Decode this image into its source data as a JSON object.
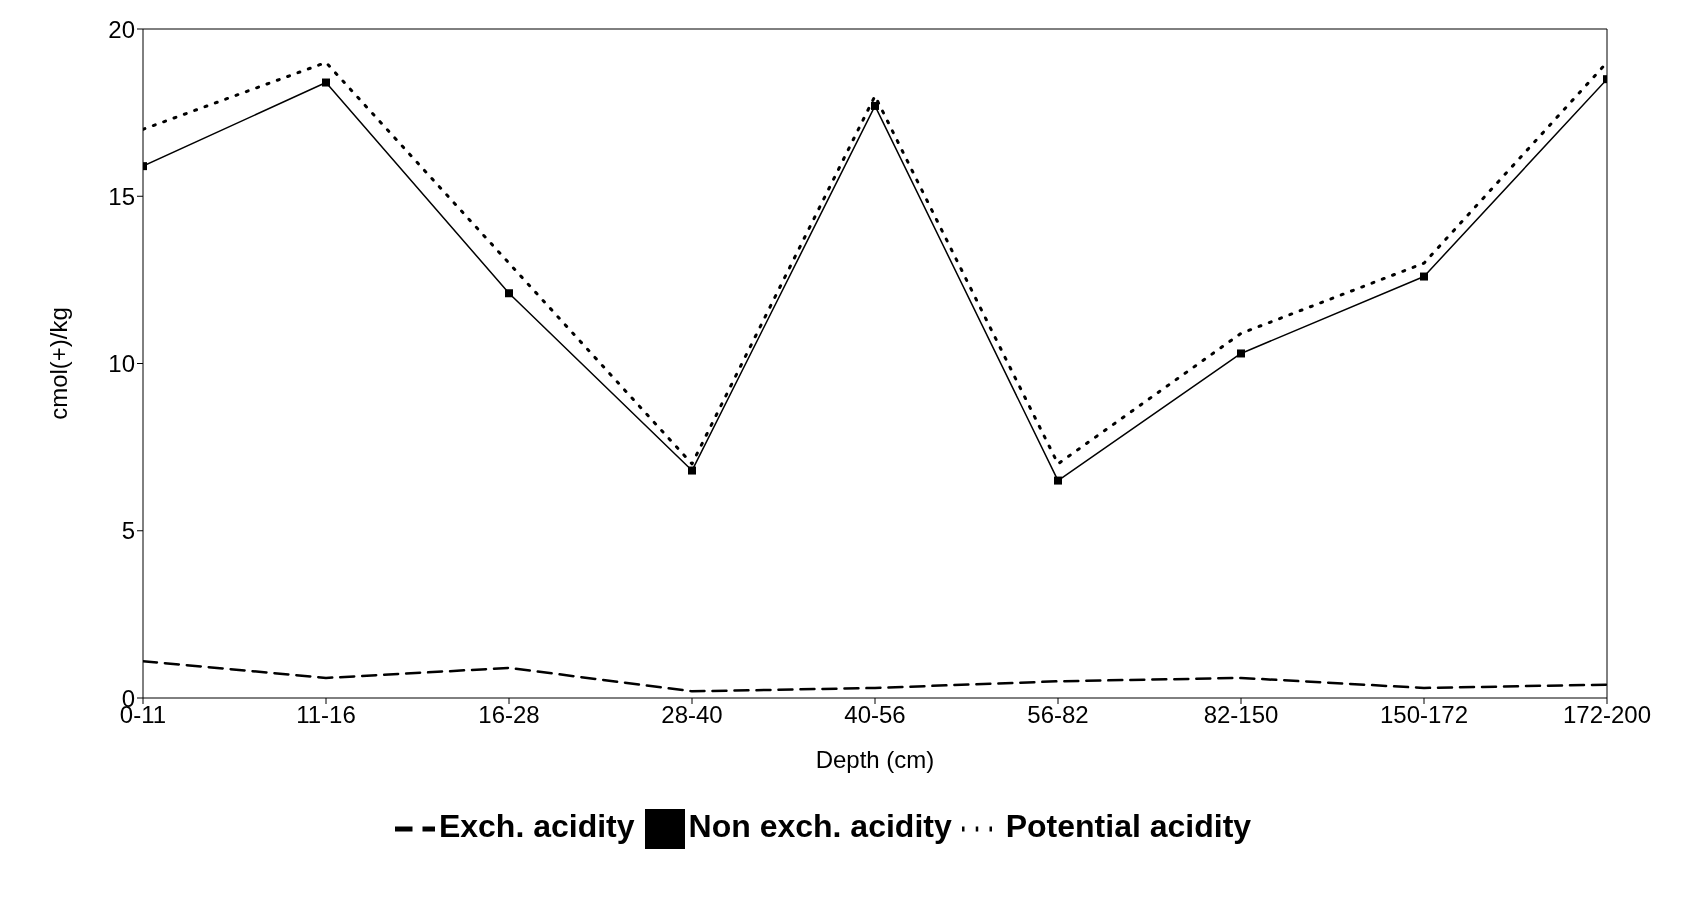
{
  "chart_data": {
    "type": "line",
    "xlabel": "Depth (cm)",
    "ylabel": "cmol(+)/kg",
    "categories": [
      "0-11",
      "11-16",
      "16-28",
      "28-40",
      "40-56",
      "56-82",
      "82-150",
      "150-172",
      "172-200"
    ],
    "series": [
      {
        "name": "Exch. acidity",
        "color": "#000000",
        "line_style": "dashed",
        "marker": "none",
        "values": [
          1.1,
          0.6,
          0.9,
          0.2,
          0.3,
          0.5,
          0.6,
          0.3,
          0.4
        ]
      },
      {
        "name": "Non exch. acidity",
        "color": "#000000",
        "line_style": "solid",
        "marker": "square",
        "values": [
          15.9,
          18.4,
          12.1,
          6.8,
          17.7,
          6.5,
          10.3,
          12.6,
          18.5
        ]
      },
      {
        "name": "Potential acidity",
        "color": "#000000",
        "line_style": "dotted",
        "marker": "none",
        "values": [
          17.0,
          19.0,
          13.0,
          7.0,
          18.0,
          7.0,
          10.9,
          13.0,
          19.0
        ]
      }
    ],
    "ylim": [
      0,
      20
    ],
    "yticks": [
      0,
      5,
      10,
      15,
      20
    ],
    "grid": false,
    "legend": "bottom"
  }
}
